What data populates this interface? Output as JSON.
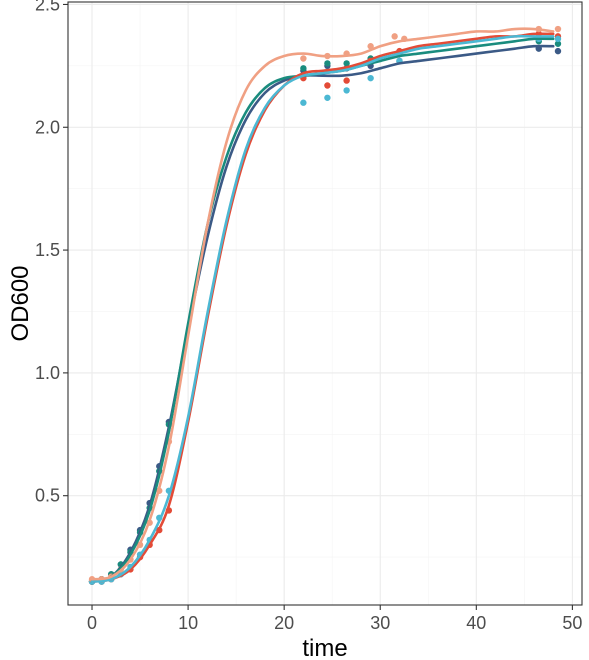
{
  "chart_data": {
    "type": "scatter",
    "xlabel": "time",
    "ylabel": "OD600",
    "xlim": [
      -2.5,
      51
    ],
    "ylim": [
      0.055,
      2.51
    ],
    "x_ticks": [
      "0",
      "10",
      "20",
      "30",
      "40",
      "50"
    ],
    "y_ticks": [
      "0.5",
      "1.0",
      "1.5",
      "2.0",
      "2.5"
    ],
    "x_tick_values": [
      0,
      10,
      20,
      30,
      40,
      50
    ],
    "y_tick_values": [
      0.5,
      1.0,
      1.5,
      2.0,
      2.5
    ],
    "x_minor_values": [
      5,
      15,
      25,
      35,
      45
    ],
    "y_minor_values": [
      0.25,
      0.75,
      1.25,
      1.75,
      2.25
    ],
    "grid": true,
    "legend": "none",
    "series": [
      {
        "color": "#3b5a86",
        "points": [
          [
            0,
            0.15
          ],
          [
            1,
            0.16
          ],
          [
            2,
            0.18
          ],
          [
            3,
            0.22
          ],
          [
            4,
            0.28
          ],
          [
            5,
            0.36
          ],
          [
            6,
            0.47
          ],
          [
            7,
            0.62
          ],
          [
            8,
            0.8
          ],
          [
            22,
            2.23
          ],
          [
            24.5,
            2.25
          ],
          [
            26.5,
            2.24
          ],
          [
            29,
            2.25
          ],
          [
            32,
            2.27
          ],
          [
            46.5,
            2.32
          ],
          [
            48.5,
            2.31
          ]
        ],
        "curve": [
          [
            0,
            0.15
          ],
          [
            2,
            0.17
          ],
          [
            4,
            0.27
          ],
          [
            6,
            0.46
          ],
          [
            8,
            0.78
          ],
          [
            10,
            1.18
          ],
          [
            12,
            1.55
          ],
          [
            14,
            1.84
          ],
          [
            16,
            2.03
          ],
          [
            18,
            2.14
          ],
          [
            20,
            2.19
          ],
          [
            22,
            2.21
          ],
          [
            24,
            2.21
          ],
          [
            26,
            2.21
          ],
          [
            28,
            2.22
          ],
          [
            30,
            2.24
          ],
          [
            32,
            2.26
          ],
          [
            34,
            2.27
          ],
          [
            36,
            2.28
          ],
          [
            38,
            2.29
          ],
          [
            40,
            2.3
          ],
          [
            42,
            2.31
          ],
          [
            44,
            2.32
          ],
          [
            46,
            2.33
          ],
          [
            48,
            2.33
          ]
        ]
      },
      {
        "color": "#1a8c7e",
        "points": [
          [
            0,
            0.15
          ],
          [
            1,
            0.16
          ],
          [
            2,
            0.18
          ],
          [
            3,
            0.22
          ],
          [
            4,
            0.27
          ],
          [
            5,
            0.35
          ],
          [
            6,
            0.45
          ],
          [
            7,
            0.6
          ],
          [
            8,
            0.79
          ],
          [
            22,
            2.24
          ],
          [
            24.5,
            2.26
          ],
          [
            26.5,
            2.26
          ],
          [
            29,
            2.28
          ],
          [
            32,
            2.3
          ],
          [
            46.5,
            2.35
          ],
          [
            48.5,
            2.34
          ]
        ],
        "curve": [
          [
            0,
            0.15
          ],
          [
            2,
            0.17
          ],
          [
            4,
            0.26
          ],
          [
            6,
            0.44
          ],
          [
            8,
            0.76
          ],
          [
            10,
            1.2
          ],
          [
            12,
            1.6
          ],
          [
            14,
            1.88
          ],
          [
            16,
            2.06
          ],
          [
            18,
            2.16
          ],
          [
            20,
            2.2
          ],
          [
            22,
            2.21
          ],
          [
            24,
            2.22
          ],
          [
            26,
            2.23
          ],
          [
            28,
            2.25
          ],
          [
            30,
            2.27
          ],
          [
            32,
            2.29
          ],
          [
            34,
            2.3
          ],
          [
            36,
            2.31
          ],
          [
            38,
            2.32
          ],
          [
            40,
            2.33
          ],
          [
            42,
            2.34
          ],
          [
            44,
            2.35
          ],
          [
            46,
            2.36
          ],
          [
            48,
            2.36
          ]
        ]
      },
      {
        "color": "#e34b37",
        "points": [
          [
            0,
            0.15
          ],
          [
            1,
            0.15
          ],
          [
            2,
            0.16
          ],
          [
            3,
            0.18
          ],
          [
            4,
            0.2
          ],
          [
            5,
            0.25
          ],
          [
            6,
            0.3
          ],
          [
            7,
            0.36
          ],
          [
            8,
            0.44
          ],
          [
            22,
            2.2
          ],
          [
            24.5,
            2.17
          ],
          [
            26.5,
            2.19
          ],
          [
            29,
            2.27
          ],
          [
            32,
            2.31
          ],
          [
            46.5,
            2.38
          ],
          [
            48.5,
            2.37
          ]
        ],
        "curve": [
          [
            0,
            0.15
          ],
          [
            2,
            0.16
          ],
          [
            4,
            0.2
          ],
          [
            6,
            0.3
          ],
          [
            8,
            0.46
          ],
          [
            10,
            0.8
          ],
          [
            12,
            1.22
          ],
          [
            14,
            1.6
          ],
          [
            16,
            1.89
          ],
          [
            18,
            2.07
          ],
          [
            20,
            2.17
          ],
          [
            22,
            2.22
          ],
          [
            24,
            2.23
          ],
          [
            26,
            2.24
          ],
          [
            28,
            2.26
          ],
          [
            30,
            2.29
          ],
          [
            32,
            2.31
          ],
          [
            34,
            2.33
          ],
          [
            36,
            2.34
          ],
          [
            38,
            2.35
          ],
          [
            40,
            2.36
          ],
          [
            42,
            2.37
          ],
          [
            44,
            2.37
          ],
          [
            46,
            2.38
          ],
          [
            48,
            2.38
          ]
        ]
      },
      {
        "color": "#4cb8d3",
        "points": [
          [
            0,
            0.15
          ],
          [
            1,
            0.15
          ],
          [
            2,
            0.16
          ],
          [
            3,
            0.18
          ],
          [
            4,
            0.21
          ],
          [
            5,
            0.26
          ],
          [
            6,
            0.32
          ],
          [
            7,
            0.41
          ],
          [
            8,
            0.52
          ],
          [
            22,
            2.1
          ],
          [
            24.5,
            2.12
          ],
          [
            26.5,
            2.15
          ],
          [
            29,
            2.2
          ],
          [
            32,
            2.27
          ],
          [
            46.5,
            2.36
          ],
          [
            48.5,
            2.36
          ]
        ],
        "curve": [
          [
            0,
            0.15
          ],
          [
            2,
            0.16
          ],
          [
            4,
            0.21
          ],
          [
            6,
            0.32
          ],
          [
            8,
            0.5
          ],
          [
            10,
            0.82
          ],
          [
            12,
            1.24
          ],
          [
            14,
            1.62
          ],
          [
            16,
            1.91
          ],
          [
            18,
            2.08
          ],
          [
            20,
            2.17
          ],
          [
            22,
            2.21
          ],
          [
            24,
            2.22
          ],
          [
            26,
            2.23
          ],
          [
            28,
            2.25
          ],
          [
            30,
            2.28
          ],
          [
            32,
            2.3
          ],
          [
            34,
            2.32
          ],
          [
            36,
            2.33
          ],
          [
            38,
            2.34
          ],
          [
            40,
            2.35
          ],
          [
            42,
            2.36
          ],
          [
            44,
            2.37
          ],
          [
            46,
            2.37
          ],
          [
            48,
            2.37
          ]
        ]
      },
      {
        "color": "#f0a083",
        "points": [
          [
            0,
            0.16
          ],
          [
            1,
            0.16
          ],
          [
            2,
            0.17
          ],
          [
            3,
            0.2
          ],
          [
            4,
            0.24
          ],
          [
            5,
            0.3
          ],
          [
            6,
            0.39
          ],
          [
            7,
            0.52
          ],
          [
            8,
            0.72
          ],
          [
            22,
            2.28
          ],
          [
            24.5,
            2.29
          ],
          [
            26.5,
            2.3
          ],
          [
            29,
            2.33
          ],
          [
            31.5,
            2.37
          ],
          [
            32.5,
            2.36
          ],
          [
            46.5,
            2.4
          ],
          [
            48.5,
            2.4
          ]
        ],
        "curve": [
          [
            0,
            0.16
          ],
          [
            2,
            0.17
          ],
          [
            4,
            0.24
          ],
          [
            6,
            0.4
          ],
          [
            8,
            0.7
          ],
          [
            10,
            1.15
          ],
          [
            12,
            1.6
          ],
          [
            14,
            1.94
          ],
          [
            16,
            2.15
          ],
          [
            18,
            2.25
          ],
          [
            20,
            2.29
          ],
          [
            22,
            2.3
          ],
          [
            24,
            2.29
          ],
          [
            26,
            2.29
          ],
          [
            28,
            2.3
          ],
          [
            30,
            2.33
          ],
          [
            32,
            2.35
          ],
          [
            34,
            2.36
          ],
          [
            36,
            2.37
          ],
          [
            38,
            2.38
          ],
          [
            40,
            2.39
          ],
          [
            42,
            2.39
          ],
          [
            44,
            2.4
          ],
          [
            46,
            2.4
          ],
          [
            48,
            2.39
          ]
        ]
      }
    ]
  }
}
